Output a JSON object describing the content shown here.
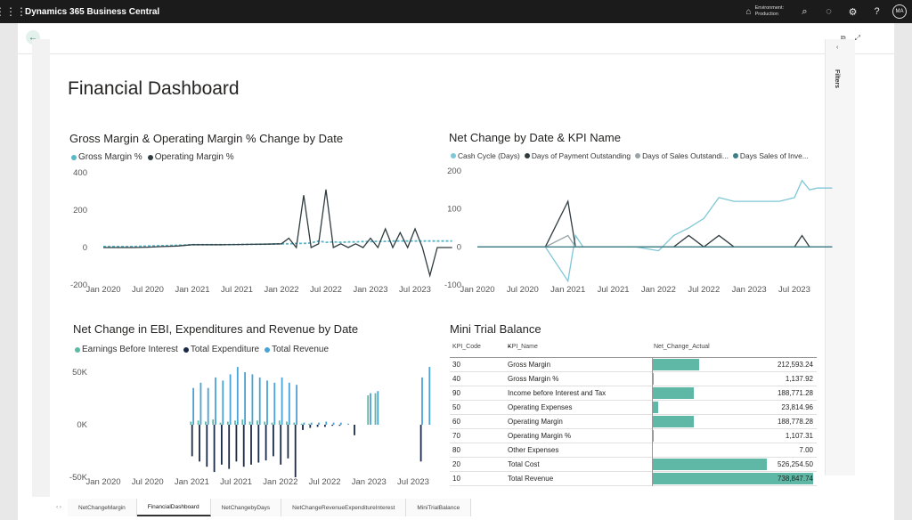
{
  "topbar": {
    "app_title": "Dynamics 365 Business Central",
    "environment_label": "Environment:",
    "environment_value": "Production",
    "avatar_initials": "MA",
    "icons": [
      "waffle-icon",
      "environment-icon",
      "search-icon",
      "bell-icon",
      "gear-icon",
      "help-icon"
    ]
  },
  "filters_label": "Filters",
  "dashboard": {
    "title": "Financial Dashboard"
  },
  "charts": {
    "gross_margin": {
      "title": "Gross Margin & Operating Margin % Change by Date",
      "legend": [
        {
          "label": "Gross Margin %",
          "color": "#5bb8c9"
        },
        {
          "label": "Operating Margin %",
          "color": "#2f3b3f"
        }
      ],
      "y_ticks": [
        "400",
        "200",
        "0",
        "-200"
      ],
      "x_ticks": [
        "Jan 2020",
        "Jul 2020",
        "Jan 2021",
        "Jul 2021",
        "Jan 2022",
        "Jul 2022",
        "Jan 2023",
        "Jul 2023"
      ]
    },
    "net_change_kpi": {
      "title": "Net Change by Date & KPI Name",
      "legend": [
        {
          "label": "Cash Cycle (Days)",
          "color": "#7fc7d6"
        },
        {
          "label": "Days of Payment Outstanding",
          "color": "#2f3b3f"
        },
        {
          "label": "Days of Sales Outstandi...",
          "color": "#9aa5a8"
        },
        {
          "label": "Days Sales of Inve...",
          "color": "#3d7f86"
        }
      ],
      "y_ticks": [
        "200",
        "100",
        "0",
        "-100"
      ],
      "x_ticks": [
        "Jan 2020",
        "Jul 2020",
        "Jan 2021",
        "Jul 2021",
        "Jan 2022",
        "Jul 2022",
        "Jan 2023",
        "Jul 2023"
      ]
    },
    "ebi": {
      "title": "Net Change in EBI, Expenditures and Revenue by Date",
      "legend": [
        {
          "label": "Earnings Before Interest",
          "color": "#5fb8a5"
        },
        {
          "label": "Total Expenditure",
          "color": "#1b2a4a"
        },
        {
          "label": "Total Revenue",
          "color": "#4aa3d6"
        }
      ],
      "y_ticks": [
        "50K",
        "0K",
        "-50K"
      ],
      "x_ticks": [
        "Jan 2020",
        "Jul 2020",
        "Jan 2021",
        "Jul 2021",
        "Jan 2022",
        "Jul 2022",
        "Jan 2023",
        "Jul 2023"
      ]
    }
  },
  "chart_data": [
    {
      "type": "line",
      "title": "Gross Margin & Operating Margin % Change by Date",
      "ylim": [
        -200,
        400
      ],
      "x": [
        "2020-01",
        "2020-03",
        "2020-05",
        "2020-07",
        "2020-09",
        "2020-11",
        "2021-01",
        "2021-03",
        "2021-05",
        "2021-07",
        "2021-09",
        "2021-11",
        "2022-01",
        "2022-02",
        "2022-03",
        "2022-04",
        "2022-05",
        "2022-06",
        "2022-07",
        "2022-08",
        "2022-09",
        "2022-10",
        "2022-11",
        "2022-12",
        "2023-01",
        "2023-02",
        "2023-03",
        "2023-04",
        "2023-05",
        "2023-06",
        "2023-07",
        "2023-08",
        "2023-09",
        "2023-10",
        "2023-11",
        "2023-12"
      ],
      "series": [
        {
          "name": "Gross Margin %",
          "values": [
            5,
            5,
            5,
            8,
            10,
            12,
            15,
            15,
            15,
            16,
            17,
            18,
            20,
            20,
            22,
            22,
            25,
            35,
            28,
            30,
            28,
            30,
            30,
            32,
            32,
            33,
            33,
            35,
            35,
            35,
            35,
            35,
            35,
            35,
            35,
            35
          ]
        },
        {
          "name": "Operating Margin %",
          "values": [
            0,
            0,
            0,
            2,
            5,
            8,
            15,
            15,
            15,
            16,
            17,
            18,
            20,
            50,
            0,
            280,
            0,
            20,
            310,
            0,
            20,
            0,
            20,
            0,
            50,
            0,
            100,
            0,
            80,
            0,
            100,
            0,
            -150,
            0,
            0,
            0
          ]
        }
      ]
    },
    {
      "type": "line",
      "title": "Net Change by Date & KPI Name",
      "ylim": [
        -100,
        200
      ],
      "x": [
        "2020-01",
        "2020-04",
        "2020-07",
        "2020-10",
        "2021-01",
        "2021-02",
        "2021-03",
        "2021-04",
        "2021-07",
        "2021-10",
        "2022-01",
        "2022-03",
        "2022-05",
        "2022-07",
        "2022-09",
        "2022-11",
        "2023-01",
        "2023-03",
        "2023-05",
        "2023-07",
        "2023-08",
        "2023-09",
        "2023-10",
        "2023-12"
      ],
      "series": [
        {
          "name": "Cash Cycle (Days)",
          "values": [
            0,
            0,
            0,
            0,
            -90,
            30,
            0,
            0,
            0,
            0,
            -10,
            30,
            50,
            75,
            130,
            120,
            120,
            120,
            120,
            130,
            175,
            150,
            155,
            155
          ]
        },
        {
          "name": "Days of Payment Outstanding",
          "values": [
            0,
            0,
            0,
            0,
            120,
            0,
            0,
            0,
            0,
            0,
            0,
            0,
            30,
            0,
            30,
            0,
            0,
            0,
            0,
            0,
            30,
            0,
            0,
            0
          ]
        },
        {
          "name": "Days of Sales Outstandi...",
          "values": [
            0,
            0,
            0,
            0,
            30,
            0,
            0,
            0,
            0,
            0,
            0,
            0,
            0,
            0,
            0,
            0,
            0,
            0,
            0,
            0,
            0,
            0,
            0,
            0
          ]
        },
        {
          "name": "Days Sales of Inve...",
          "values": [
            0,
            0,
            0,
            0,
            0,
            0,
            0,
            0,
            0,
            0,
            0,
            0,
            0,
            0,
            0,
            0,
            0,
            0,
            0,
            0,
            0,
            0,
            0,
            0
          ]
        }
      ]
    },
    {
      "type": "bar",
      "title": "Net Change in EBI, Expenditures and Revenue by Date",
      "ylim": [
        -50000,
        50000
      ],
      "categories": [
        "2020-01",
        "2020-07",
        "2021-01",
        "2021-02",
        "2021-03",
        "2021-04",
        "2021-05",
        "2021-06",
        "2021-07",
        "2021-08",
        "2021-09",
        "2021-10",
        "2021-11",
        "2021-12",
        "2022-01",
        "2022-02",
        "2022-03",
        "2022-04",
        "2022-05",
        "2022-06",
        "2022-07",
        "2022-08",
        "2022-09",
        "2022-10",
        "2022-11",
        "2022-12",
        "2023-01",
        "2023-02",
        "2023-03",
        "2023-04",
        "2023-05",
        "2023-06",
        "2023-07",
        "2023-08",
        "2023-09"
      ],
      "series": [
        {
          "name": "Earnings Before Interest",
          "values": [
            0,
            0,
            3000,
            4000,
            3000,
            5000,
            2000,
            3000,
            4000,
            5000,
            3000,
            4000,
            3000,
            2000,
            4000,
            3000,
            2000,
            1000,
            1000,
            0,
            0,
            0,
            0,
            0,
            0,
            0,
            28000,
            30000,
            0,
            0,
            0,
            0,
            0,
            0,
            0
          ]
        },
        {
          "name": "Total Expenditure",
          "values": [
            0,
            0,
            -30000,
            -35000,
            -40000,
            -45000,
            -38000,
            -42000,
            -35000,
            -40000,
            -38000,
            -36000,
            -34000,
            -30000,
            -38000,
            -32000,
            -50000,
            -5000,
            -3000,
            -2000,
            -2000,
            -1000,
            -1000,
            0,
            -10000,
            0,
            0,
            0,
            0,
            0,
            0,
            0,
            0,
            -35000,
            0
          ]
        },
        {
          "name": "Total Revenue",
          "values": [
            0,
            0,
            35000,
            40000,
            35000,
            45000,
            42000,
            48000,
            55000,
            50000,
            48000,
            45000,
            42000,
            40000,
            45000,
            40000,
            38000,
            2000,
            2000,
            2000,
            3000,
            2000,
            2000,
            1000,
            0,
            0,
            30000,
            32000,
            0,
            0,
            0,
            0,
            0,
            45000,
            55000
          ]
        }
      ]
    }
  ],
  "table": {
    "title": "Mini Trial Balance",
    "headers": {
      "code": "KPI_Code",
      "name": "KPI_Name",
      "value": "Net_Change_Actual"
    },
    "max_value": 738847.74,
    "rows": [
      {
        "code": "30",
        "name": "Gross Margin",
        "value": "212,593.24",
        "num": 212593.24
      },
      {
        "code": "40",
        "name": "Gross Margin %",
        "value": "1,137.92",
        "num": 1137.92
      },
      {
        "code": "90",
        "name": "Income before Interest and Tax",
        "value": "188,771.28",
        "num": 188771.28
      },
      {
        "code": "50",
        "name": "Operating Expenses",
        "value": "23,814.96",
        "num": 23814.96
      },
      {
        "code": "60",
        "name": "Operating Margin",
        "value": "188,778.28",
        "num": 188778.28
      },
      {
        "code": "70",
        "name": "Operating Margin %",
        "value": "1,107.31",
        "num": 1107.31
      },
      {
        "code": "80",
        "name": "Other Expenses",
        "value": "7.00",
        "num": 7.0
      },
      {
        "code": "20",
        "name": "Total Cost",
        "value": "526,254.50",
        "num": 526254.5
      },
      {
        "code": "10",
        "name": "Total Revenue",
        "value": "738,847.74",
        "num": 738847.74
      }
    ]
  },
  "tabs": [
    {
      "label": "NetChangeMargin",
      "active": false
    },
    {
      "label": "FinancialDashboard",
      "active": true
    },
    {
      "label": "NetChangebyDays",
      "active": false
    },
    {
      "label": "NetChangeRevenueExpenditureInterest",
      "active": false
    },
    {
      "label": "MiniTrialBalance",
      "active": false
    }
  ]
}
